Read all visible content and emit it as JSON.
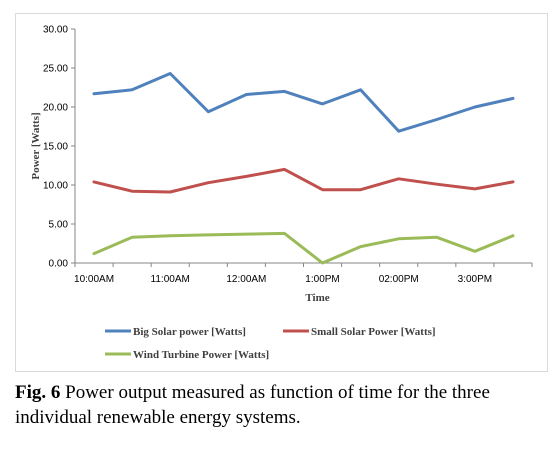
{
  "chart_data": {
    "type": "line",
    "x_ticks": [
      "10:00AM",
      "11:00AM",
      "12:00AM",
      "1:00PM",
      "02:00PM",
      "3:00PM"
    ],
    "xlabel": "Time",
    "ylabel": "Power [Watts]",
    "ylim": [
      0,
      30
    ],
    "y_ticks": [
      "0.00",
      "5.00",
      "10.00",
      "15.00",
      "20.00",
      "25.00",
      "30.00"
    ],
    "y_tick_values": [
      0,
      5,
      10,
      15,
      20,
      25,
      30
    ],
    "grid": false,
    "legend_position": "bottom",
    "x": [
      0,
      0.5,
      1,
      1.5,
      2,
      2.5,
      3,
      3.5,
      4,
      4.5,
      5,
      5.5
    ],
    "series": [
      {
        "name": "Big Solar power [Watts]",
        "color": "#4f81bd",
        "values": [
          21.7,
          22.2,
          24.3,
          19.4,
          21.6,
          22.0,
          20.4,
          22.2,
          16.9,
          18.4,
          20.0,
          21.1
        ]
      },
      {
        "name": "Small Solar Power [Watts]",
        "color": "#c0504d",
        "values": [
          10.4,
          9.2,
          9.1,
          10.3,
          11.1,
          12.0,
          9.4,
          9.4,
          10.8,
          10.1,
          9.5,
          10.4
        ]
      },
      {
        "name": "Wind Turbine Power [Watts]",
        "color": "#9bbb59",
        "values": [
          1.2,
          3.3,
          3.5,
          3.6,
          3.7,
          3.8,
          0.0,
          2.1,
          3.1,
          3.3,
          1.5,
          3.5
        ]
      }
    ]
  },
  "caption": {
    "label": "Fig. 6",
    "text": " Power output measured as function of time for the three individual renewable energy systems."
  }
}
